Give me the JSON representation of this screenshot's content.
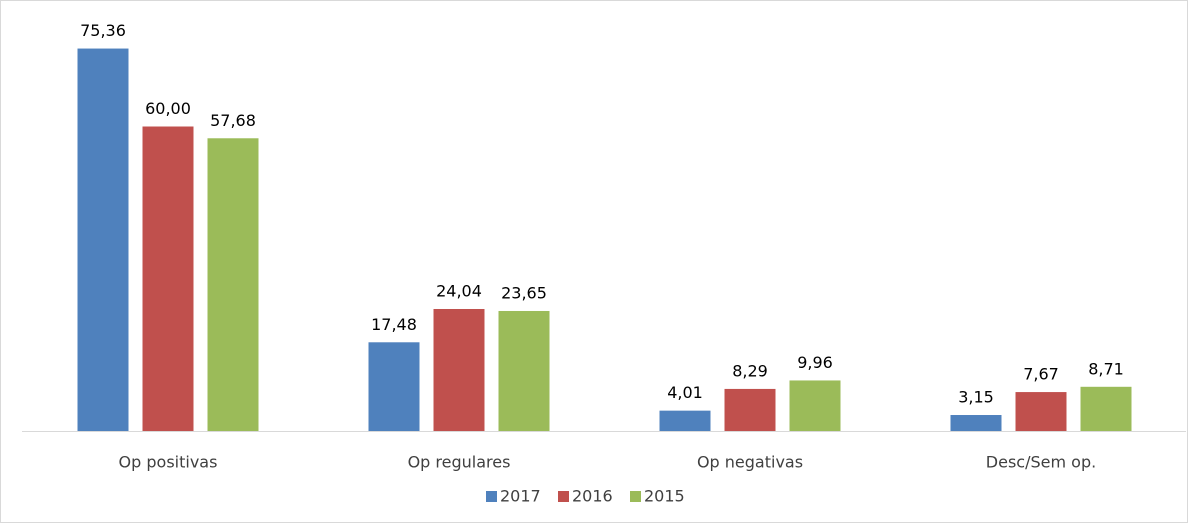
{
  "chart_data": {
    "type": "bar",
    "categories": [
      "Op positivas",
      "Op regulares",
      "Op negativas",
      "Desc/Sem op."
    ],
    "series": [
      {
        "name": "2017",
        "color": "#4f81bd",
        "values": [
          75.36,
          17.48,
          4.01,
          3.15
        ],
        "value_labels": [
          "75,36",
          "17,48",
          "4,01",
          "3,15"
        ]
      },
      {
        "name": "2016",
        "color": "#c0504d",
        "values": [
          60.0,
          24.04,
          8.29,
          7.67
        ],
        "value_labels": [
          "60,00",
          "24,04",
          "8,29",
          "7,67"
        ]
      },
      {
        "name": "2015",
        "color": "#9bbb59",
        "values": [
          57.68,
          23.65,
          9.96,
          8.71
        ],
        "value_labels": [
          "57,68",
          "23,65",
          "9,96",
          "8,71"
        ]
      }
    ],
    "ylim": [
      0,
      80
    ],
    "legend": "bottom"
  }
}
